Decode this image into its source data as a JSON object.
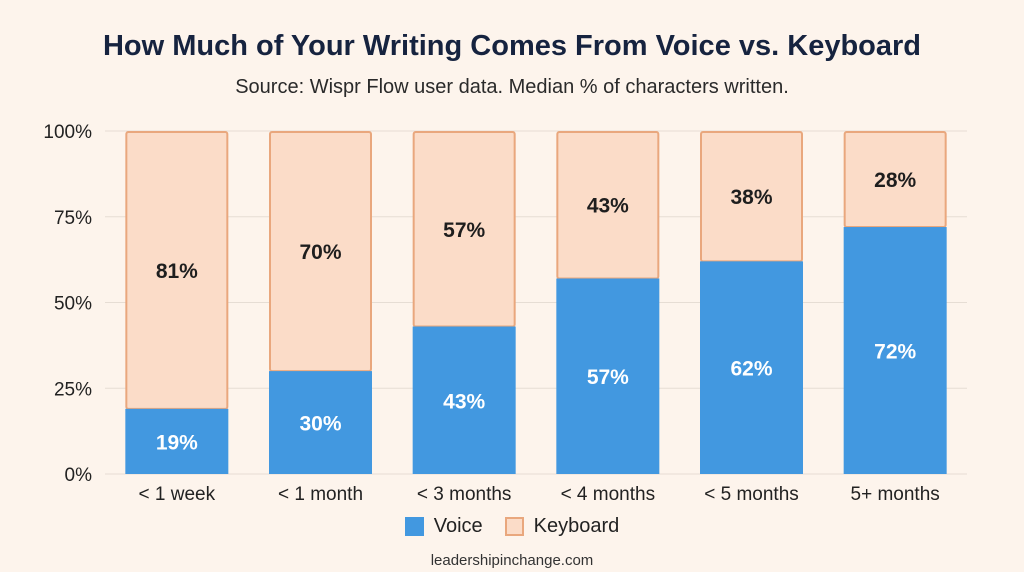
{
  "chart_data": {
    "type": "bar",
    "stacked": true,
    "title": "How Much of Your Writing Comes From Voice vs. Keyboard",
    "subtitle": "Source: Wispr Flow user data. Median % of characters written.",
    "categories": [
      "< 1 week",
      "< 1 month",
      "< 3 months",
      "< 4 months",
      "< 5 months",
      "5+ months"
    ],
    "series": [
      {
        "name": "Voice",
        "values": [
          19,
          30,
          43,
          57,
          62,
          72
        ],
        "labels": [
          "19%",
          "30%",
          "43%",
          "57%",
          "62%",
          "72%"
        ],
        "color": "#4298e0"
      },
      {
        "name": "Keyboard",
        "values": [
          81,
          70,
          57,
          43,
          38,
          28
        ],
        "labels": [
          "81%",
          "70%",
          "57%",
          "43%",
          "38%",
          "28%"
        ],
        "color": "#fbdcc8",
        "border": "#e9a77d"
      }
    ],
    "ylim": [
      0,
      100
    ],
    "yticks": [
      "0%",
      "25%",
      "50%",
      "75%",
      "100%"
    ],
    "ytick_values": [
      0,
      25,
      50,
      75,
      100
    ],
    "xlabel": "",
    "ylabel": "",
    "legend": "bottom-center",
    "grid": true
  },
  "footer": "leadershipinchange.com"
}
